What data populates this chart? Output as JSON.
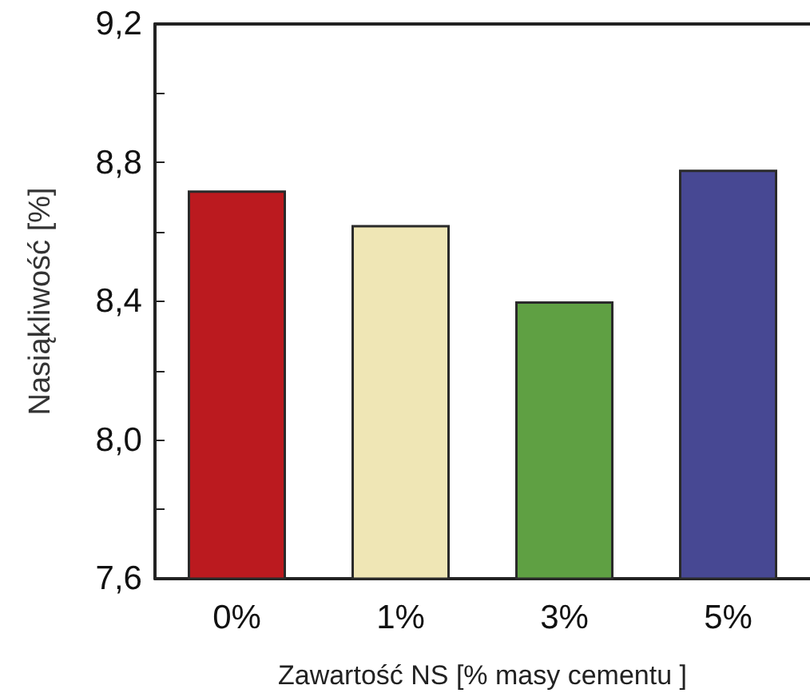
{
  "chart_data": {
    "type": "bar",
    "xlabel": "Zawartość NS [% masy cementu ]",
    "ylabel": "Nasiąkliwość [%]",
    "categories": [
      "0%",
      "1%",
      "3%",
      "5%"
    ],
    "values": [
      8.72,
      8.62,
      8.4,
      8.78
    ],
    "colors": [
      "#bb1a1f",
      "#efe6b5",
      "#5fa043",
      "#474893"
    ],
    "ylim": [
      7.6,
      9.2
    ],
    "yticks": [
      {
        "value": 7.6,
        "label": "7,6"
      },
      {
        "value": 7.8,
        "label": null
      },
      {
        "value": 8.0,
        "label": "8,0"
      },
      {
        "value": 8.2,
        "label": null
      },
      {
        "value": 8.4,
        "label": "8,4"
      },
      {
        "value": 8.6,
        "label": null
      },
      {
        "value": 8.8,
        "label": "8,8"
      },
      {
        "value": 9.0,
        "label": null
      },
      {
        "value": 9.2,
        "label": "9,2"
      }
    ]
  }
}
